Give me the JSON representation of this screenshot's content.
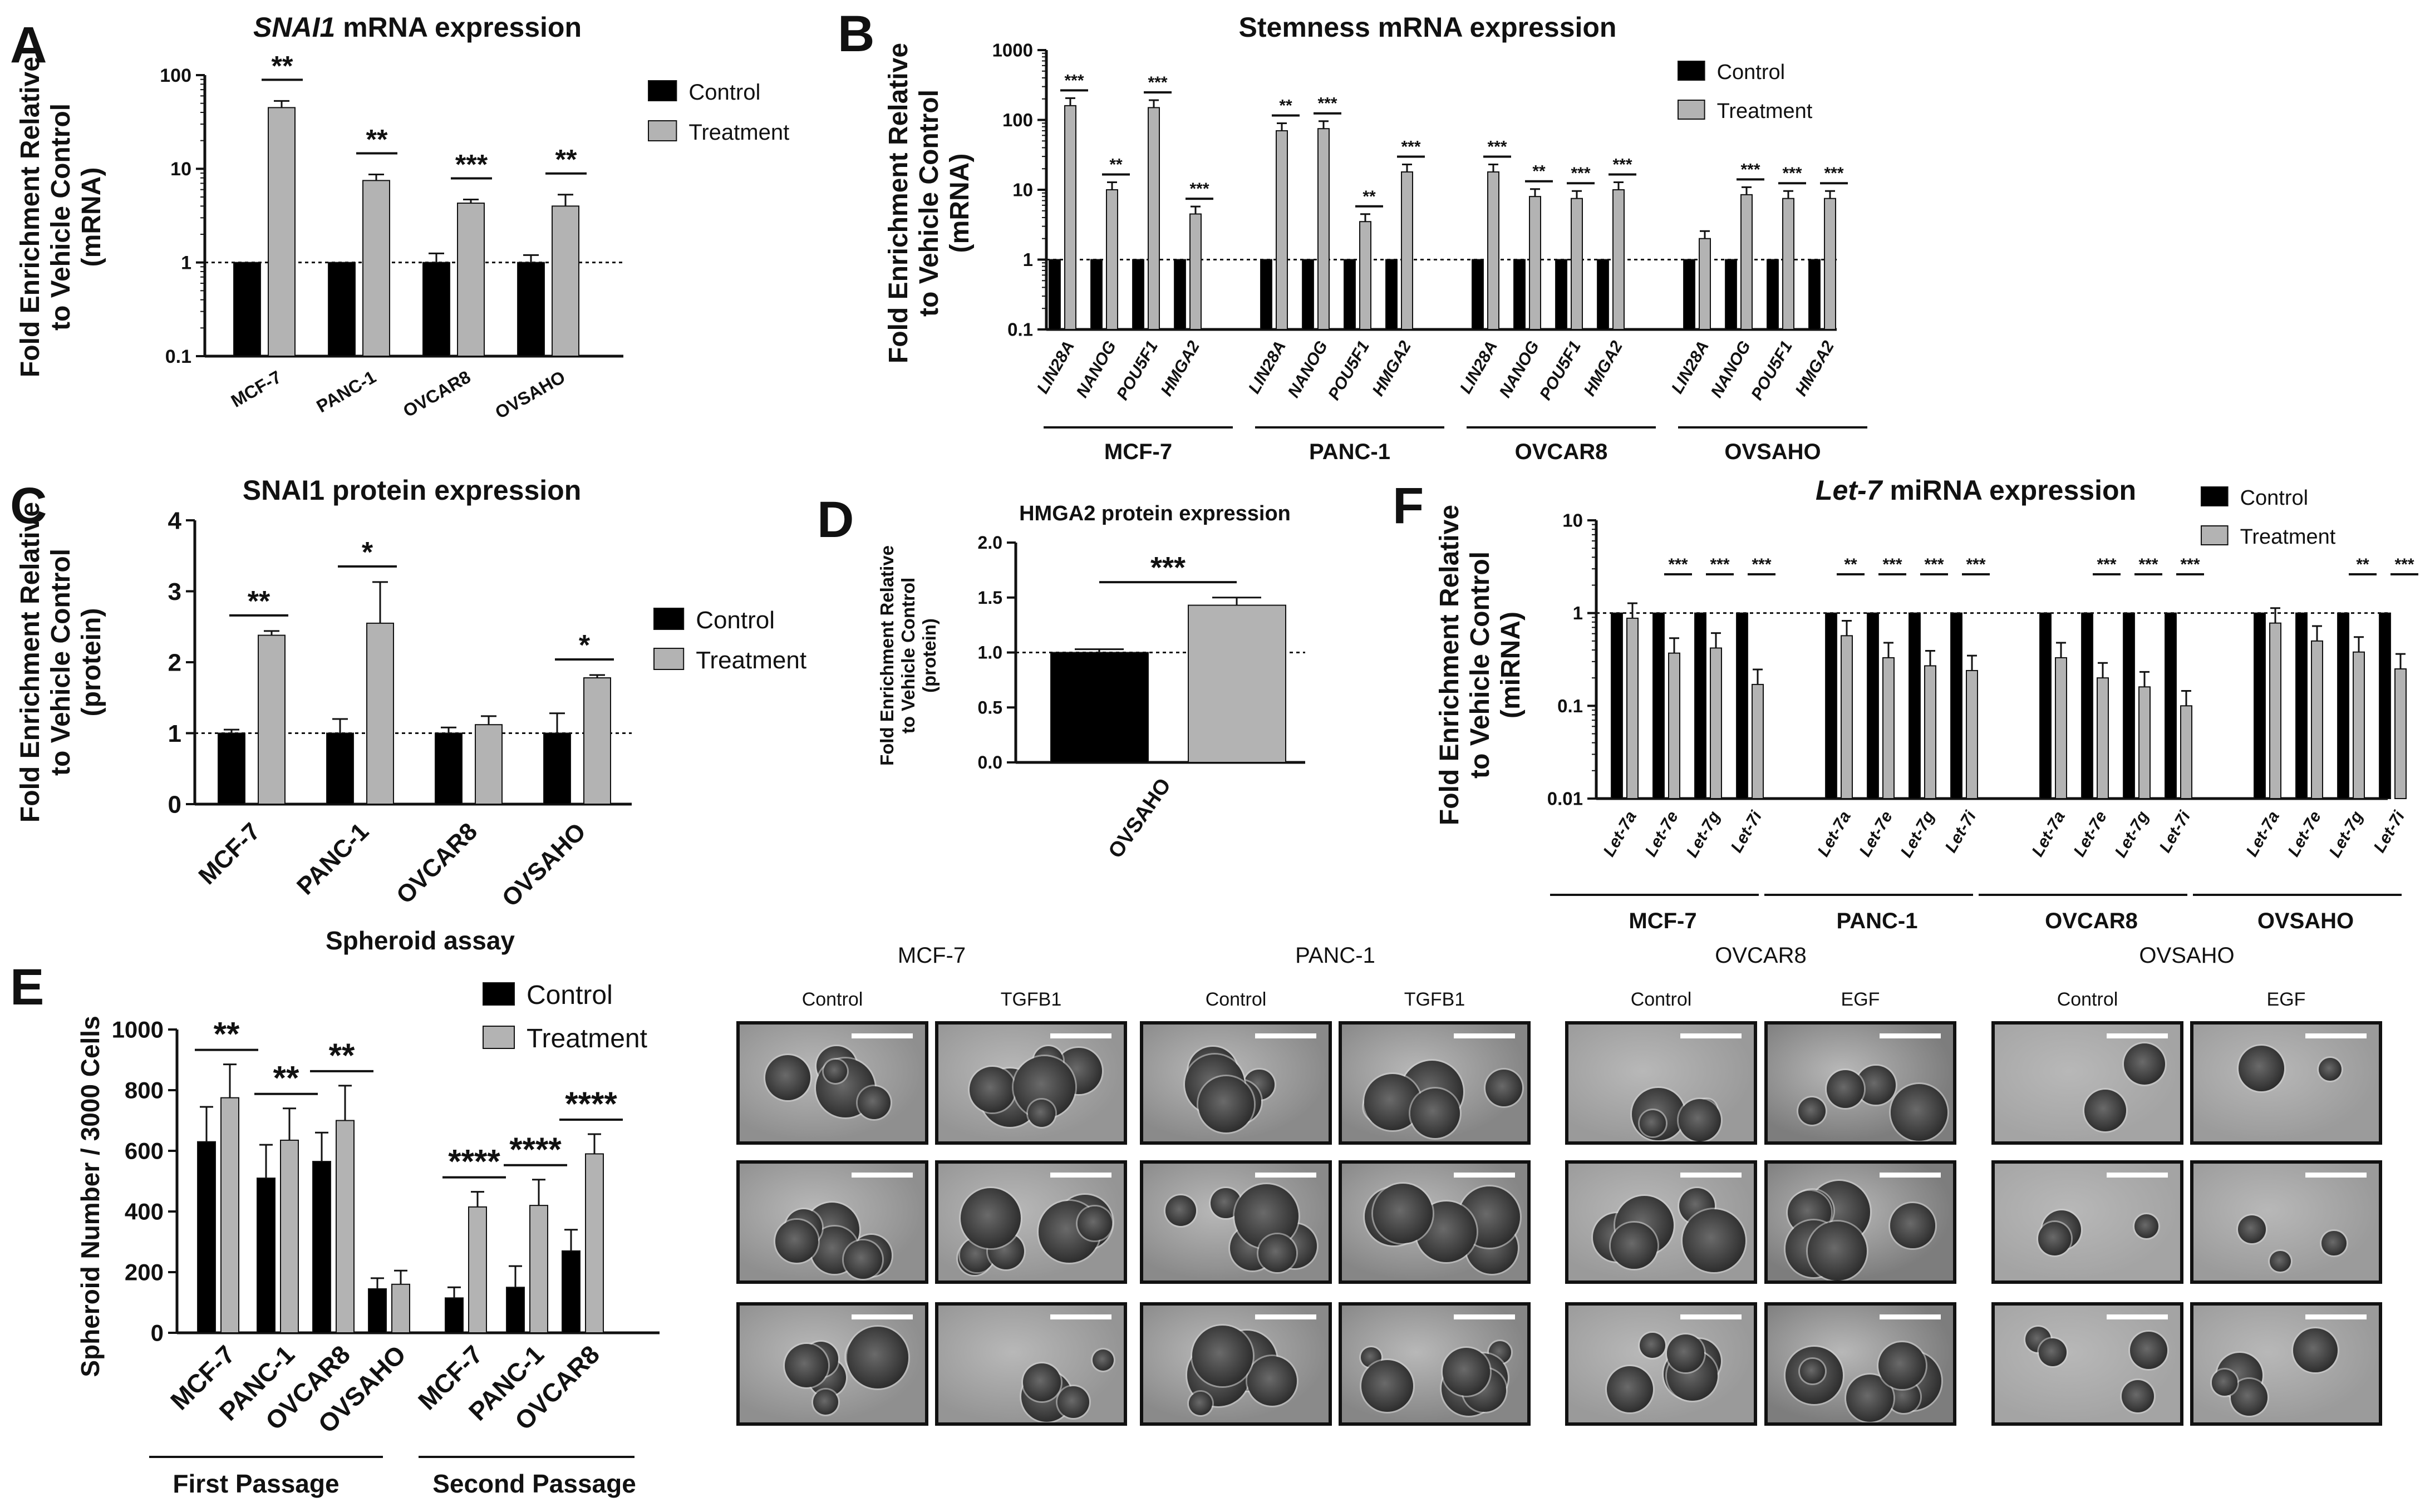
{
  "panels": {
    "A": {
      "letter": "A",
      "chart_data": {
        "type": "bar",
        "title": "SNAI1 mRNA expression",
        "title_italic_part": "SNAI1",
        "title_rest": " mRNA expression",
        "ylabel_lines": [
          "Fold Enrichment Relative",
          "to Vehicle Control",
          "(mRNA)"
        ],
        "yscale": "log",
        "ylim": [
          0.1,
          100
        ],
        "yticks": [
          "0.1",
          "1",
          "10",
          "100"
        ],
        "categories": [
          "MCF-7",
          "PANC-1",
          "OVCAR8",
          "OVSAHO"
        ],
        "series": [
          {
            "name": "Control",
            "values": [
              1,
              1,
              1,
              1
            ],
            "errors": [
              0,
              0,
              0.25,
              0.2
            ]
          },
          {
            "name": "Treatment",
            "values": [
              45,
              7.5,
              4.3,
              4.0
            ],
            "errors": [
              8,
              1.2,
              0.4,
              1.3
            ]
          }
        ],
        "significance": [
          "**",
          "**",
          "***",
          "**"
        ],
        "legend": [
          "Control",
          "Treatment"
        ],
        "legend_position": "top-right",
        "reference_line": 1
      }
    },
    "B": {
      "letter": "B",
      "chart_data": {
        "type": "bar",
        "title": "Stemness mRNA expression",
        "ylabel_lines": [
          "Fold Enrichment Relative",
          "to Vehicle Control",
          "(mRNA)"
        ],
        "yscale": "log",
        "ylim": [
          0.1,
          1000
        ],
        "yticks": [
          "0.1",
          "1",
          "10",
          "100",
          "1000"
        ],
        "groups": [
          "MCF-7",
          "PANC-1",
          "OVCAR8",
          "OVSAHO"
        ],
        "genes": [
          "LIN28A",
          "NANOG",
          "POU5F1",
          "HMGA2"
        ],
        "series": [
          {
            "name": "Control",
            "values": [
              1,
              1,
              1,
              1,
              1,
              1,
              1,
              1,
              1,
              1,
              1,
              1,
              1,
              1,
              1,
              1
            ]
          },
          {
            "name": "Treatment",
            "values": [
              160,
              10,
              150,
              4.5,
              70,
              75,
              3.5,
              18,
              18,
              8,
              7.5,
              10,
              2,
              8.5,
              7.5,
              7.5
            ]
          }
        ],
        "significance": [
          "***",
          "**",
          "***",
          "***",
          "**",
          "***",
          "**",
          "***",
          "***",
          "**",
          "***",
          "***",
          "",
          "***",
          "***",
          "***"
        ],
        "legend": [
          "Control",
          "Treatment"
        ],
        "reference_line": 1
      }
    },
    "C": {
      "letter": "C",
      "chart_data": {
        "type": "bar",
        "title": "SNAI1 protein expression",
        "ylabel_lines": [
          "Fold Enrichment Relative",
          "to Vehicle Control",
          "(protein)"
        ],
        "ylim": [
          0,
          4
        ],
        "yticks": [
          "0",
          "1",
          "2",
          "3",
          "4"
        ],
        "categories": [
          "MCF-7",
          "PANC-1",
          "OVCAR8",
          "OVSAHO"
        ],
        "series": [
          {
            "name": "Control",
            "values": [
              1,
              1,
              1,
              1
            ],
            "errors": [
              0.05,
              0.2,
              0.08,
              0.28
            ]
          },
          {
            "name": "Treatment",
            "values": [
              2.38,
              2.55,
              1.12,
              1.78
            ],
            "errors": [
              0.06,
              0.58,
              0.12,
              0.04
            ]
          }
        ],
        "significance": [
          "**",
          "*",
          "",
          "*"
        ],
        "legend": [
          "Control",
          "Treatment"
        ],
        "reference_line": 1
      }
    },
    "D": {
      "letter": "D",
      "chart_data": {
        "type": "bar",
        "title": "HMGA2 protein expression",
        "ylabel_lines": [
          "Fold Enrichment Relative",
          "to Vehicle Control",
          "(protein)"
        ],
        "ylim": [
          0,
          2.0
        ],
        "yticks": [
          "0.0",
          "0.5",
          "1.0",
          "1.5",
          "2.0"
        ],
        "categories": [
          "OVSAHO"
        ],
        "series": [
          {
            "name": "Control",
            "values": [
              1.0
            ],
            "errors": [
              0.03
            ]
          },
          {
            "name": "Treatment",
            "values": [
              1.43
            ],
            "errors": [
              0.07
            ]
          }
        ],
        "significance": [
          "***"
        ],
        "reference_line": 1
      }
    },
    "F": {
      "letter": "F",
      "chart_data": {
        "type": "bar",
        "title_italic_part": "Let-7",
        "title_rest": " miRNA expression",
        "title": "Let-7 miRNA expression",
        "ylabel_lines": [
          "Fold Enrichment Relative",
          "to Vehicle Control",
          "(miRNA)"
        ],
        "yscale": "log",
        "ylim": [
          0.01,
          10
        ],
        "yticks": [
          "0.01",
          "0.1",
          "1",
          "10"
        ],
        "groups": [
          "MCF-7",
          "PANC-1",
          "OVCAR8",
          "OVSAHO"
        ],
        "genes": [
          "Let-7a",
          "Let-7e",
          "Let-7g",
          "Let-7i"
        ],
        "series": [
          {
            "name": "Control",
            "values": [
              1,
              1,
              1,
              1,
              1,
              1,
              1,
              1,
              1,
              1,
              1,
              1,
              1,
              1,
              1,
              1
            ]
          },
          {
            "name": "Treatment",
            "values": [
              0.88,
              0.37,
              0.42,
              0.17,
              0.57,
              0.33,
              0.27,
              0.24,
              0.33,
              0.2,
              0.16,
              0.1,
              0.78,
              0.5,
              0.38,
              0.25
            ]
          }
        ],
        "significance": [
          "",
          "***",
          "***",
          "***",
          "**",
          "***",
          "***",
          "***",
          "",
          "***",
          "***",
          "***",
          "",
          "",
          "**",
          "***"
        ],
        "legend": [
          "Control",
          "Treatment"
        ],
        "reference_line": 1
      }
    },
    "E": {
      "letter": "E",
      "chart_data": {
        "type": "bar",
        "title": "Spheroid assay",
        "ylabel": "Spheroid Number / 3000 Cells",
        "ylim": [
          0,
          1000
        ],
        "yticks": [
          "0",
          "200",
          "400",
          "600",
          "800",
          "1000"
        ],
        "passages": [
          {
            "name": "First Passage",
            "categories": [
              "MCF-7",
              "PANC-1",
              "OVCAR8",
              "OVSAHO"
            ]
          },
          {
            "name": "Second Passage",
            "categories": [
              "MCF-7",
              "PANC-1",
              "OVCAR8"
            ]
          }
        ],
        "series": [
          {
            "name": "Control",
            "values": [
              630,
              510,
              565,
              145,
              115,
              150,
              270
            ],
            "errors": [
              115,
              110,
              95,
              35,
              35,
              70,
              70
            ]
          },
          {
            "name": "Treatment",
            "values": [
              775,
              635,
              700,
              160,
              415,
              420,
              590
            ],
            "errors": [
              110,
              105,
              115,
              45,
              50,
              85,
              65
            ]
          }
        ],
        "significance": [
          "**",
          "**",
          "**",
          "",
          "****",
          "****",
          "****"
        ],
        "legend": [
          "Control",
          "Treatment"
        ]
      }
    }
  },
  "micrographs": {
    "lines": [
      {
        "name": "MCF-7",
        "conditions": [
          "Control",
          "TGFB1"
        ]
      },
      {
        "name": "PANC-1",
        "conditions": [
          "Control",
          "TGFB1"
        ]
      },
      {
        "name": "OVCAR8",
        "conditions": [
          "Control",
          "EGF"
        ]
      },
      {
        "name": "OVSAHO",
        "conditions": [
          "Control",
          "EGF"
        ]
      }
    ]
  },
  "colors": {
    "control": "#000000",
    "treatment": "#b3b3b3"
  }
}
